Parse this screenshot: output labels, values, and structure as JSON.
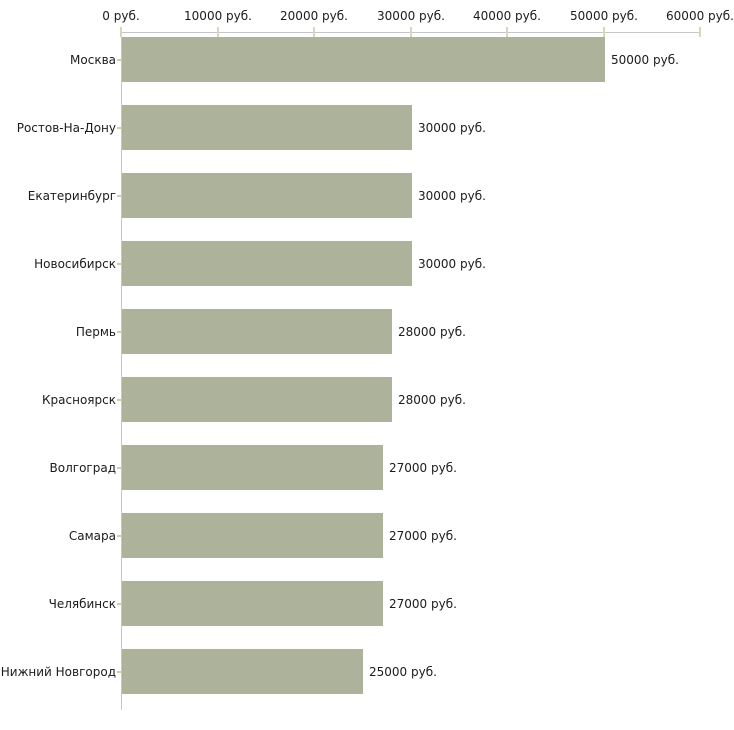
{
  "chart_data": {
    "type": "bar",
    "orientation": "horizontal",
    "title": "",
    "xlabel": "",
    "ylabel": "",
    "categories": [
      "Москва",
      "Ростов-На-Дону",
      "Екатеринбург",
      "Новосибирск",
      "Пермь",
      "Красноярск",
      "Волгоград",
      "Самара",
      "Челябинск",
      "Нижний Новгород"
    ],
    "values": [
      50000,
      30000,
      30000,
      30000,
      28000,
      28000,
      27000,
      27000,
      27000,
      25000
    ],
    "value_labels": [
      "50000 руб.",
      "30000 руб.",
      "30000 руб.",
      "30000 руб.",
      "28000 руб.",
      "28000 руб.",
      "27000 руб.",
      "27000 руб.",
      "27000 руб.",
      "25000 руб."
    ],
    "x_tick_values": [
      0,
      10000,
      20000,
      30000,
      40000,
      50000,
      60000
    ],
    "x_tick_labels": [
      "0 руб.",
      "10000 руб.",
      "20000 руб.",
      "30000 руб.",
      "40000 руб.",
      "50000 руб.",
      "60000 руб."
    ],
    "xlim": [
      0,
      60000
    ],
    "unit": "руб.",
    "grid": false,
    "legend": false,
    "colors": {
      "bar": "#adb39b",
      "axis_line": "#c6c6c6",
      "tick": "#d6d8b6",
      "category_tick": "#cdd0ae",
      "text": "#1b1b1b",
      "background": "#ffffff"
    }
  }
}
